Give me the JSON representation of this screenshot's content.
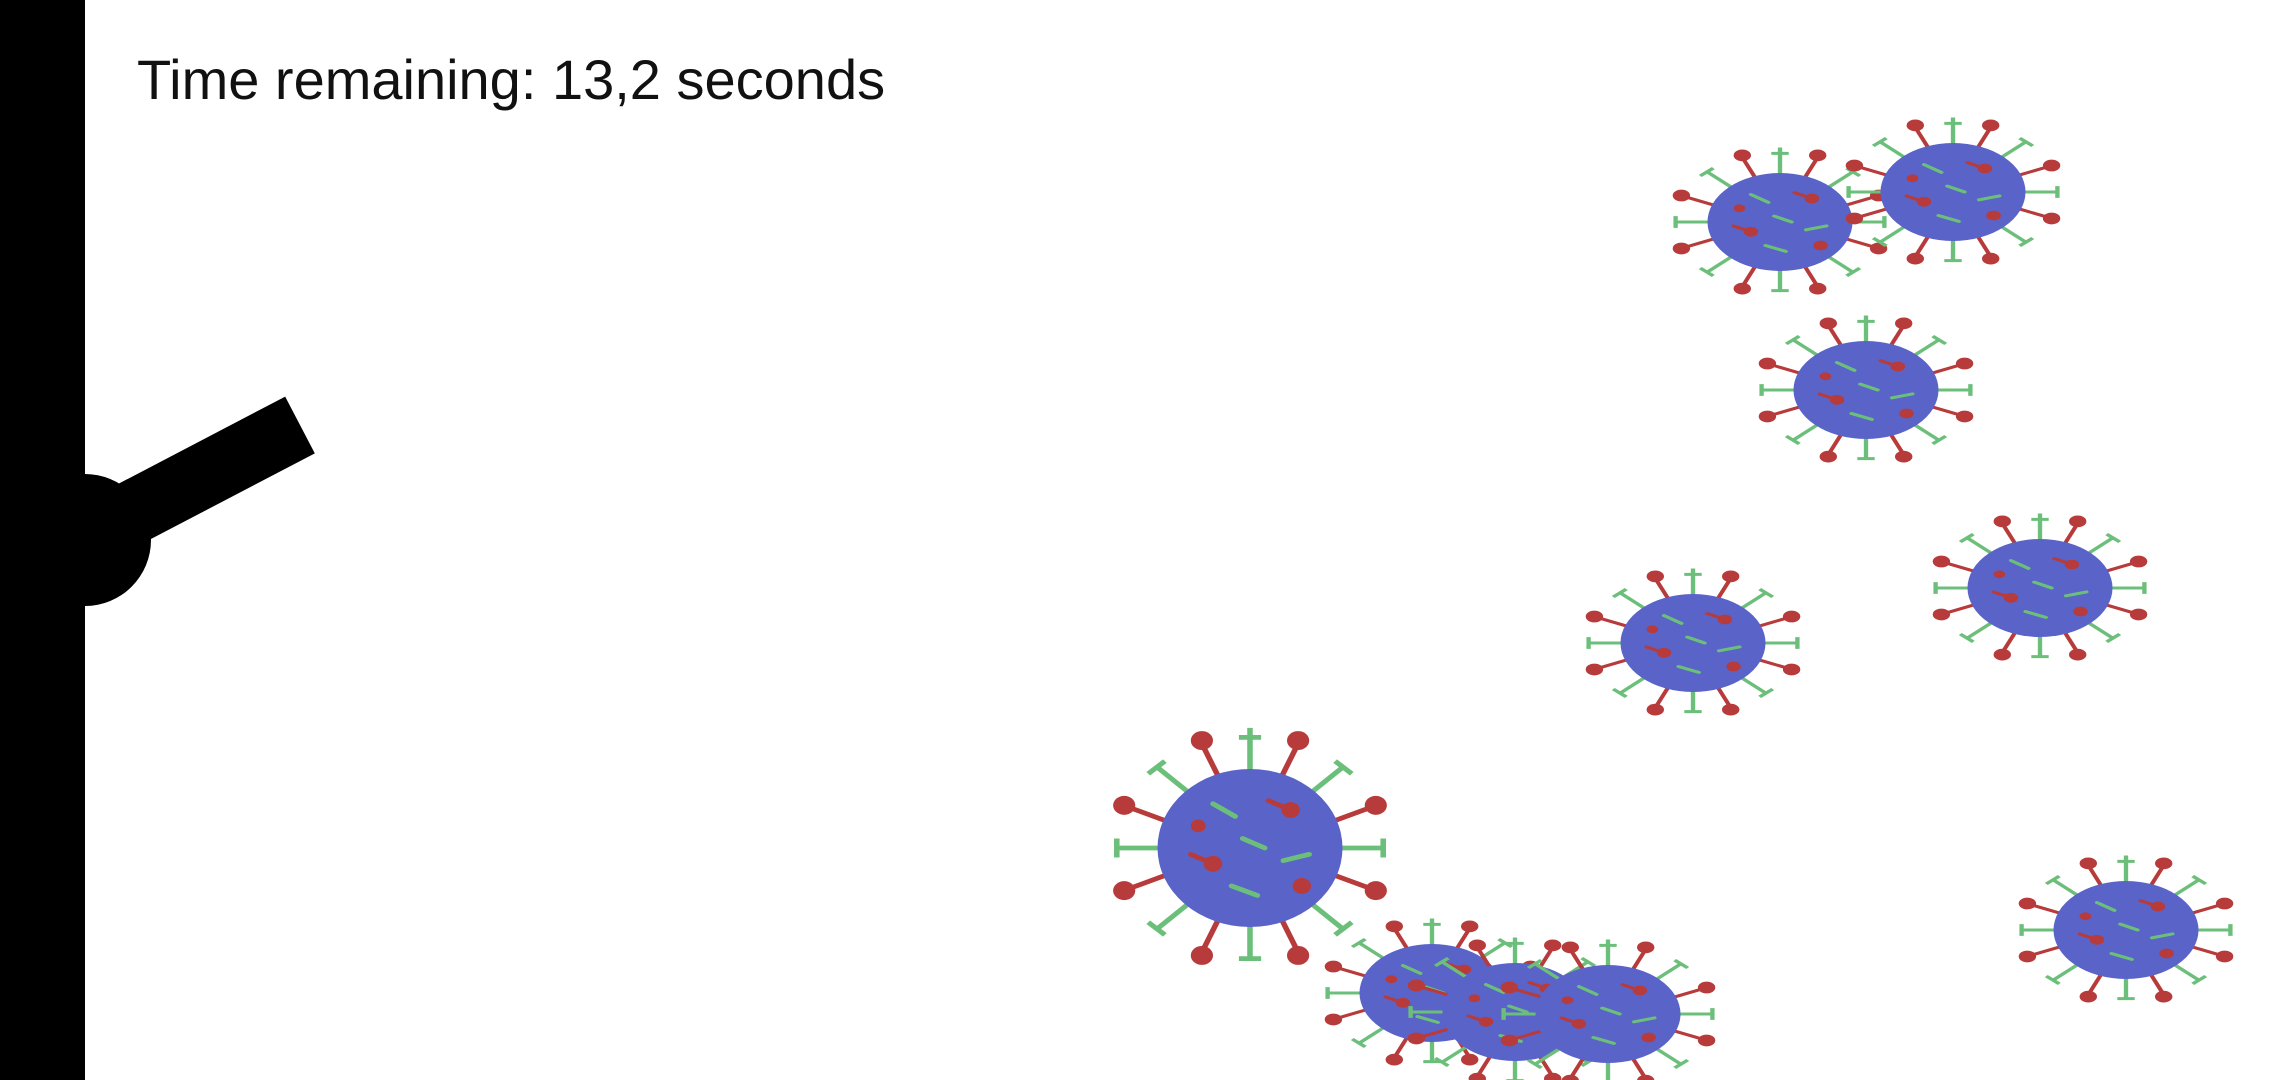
{
  "hud": {
    "time_prefix": "Time remaining:",
    "time_value": "13,2",
    "time_unit": "seconds"
  },
  "colors": {
    "wall": "#000000",
    "cannon": "#000000",
    "virus_body": "#5a63c8",
    "spike_red": "#b83b3b",
    "spike_green": "#6cbf7a",
    "background": "#ffffff"
  },
  "icons": {
    "virus": "virus-icon",
    "cannon": "cannon-icon"
  }
}
